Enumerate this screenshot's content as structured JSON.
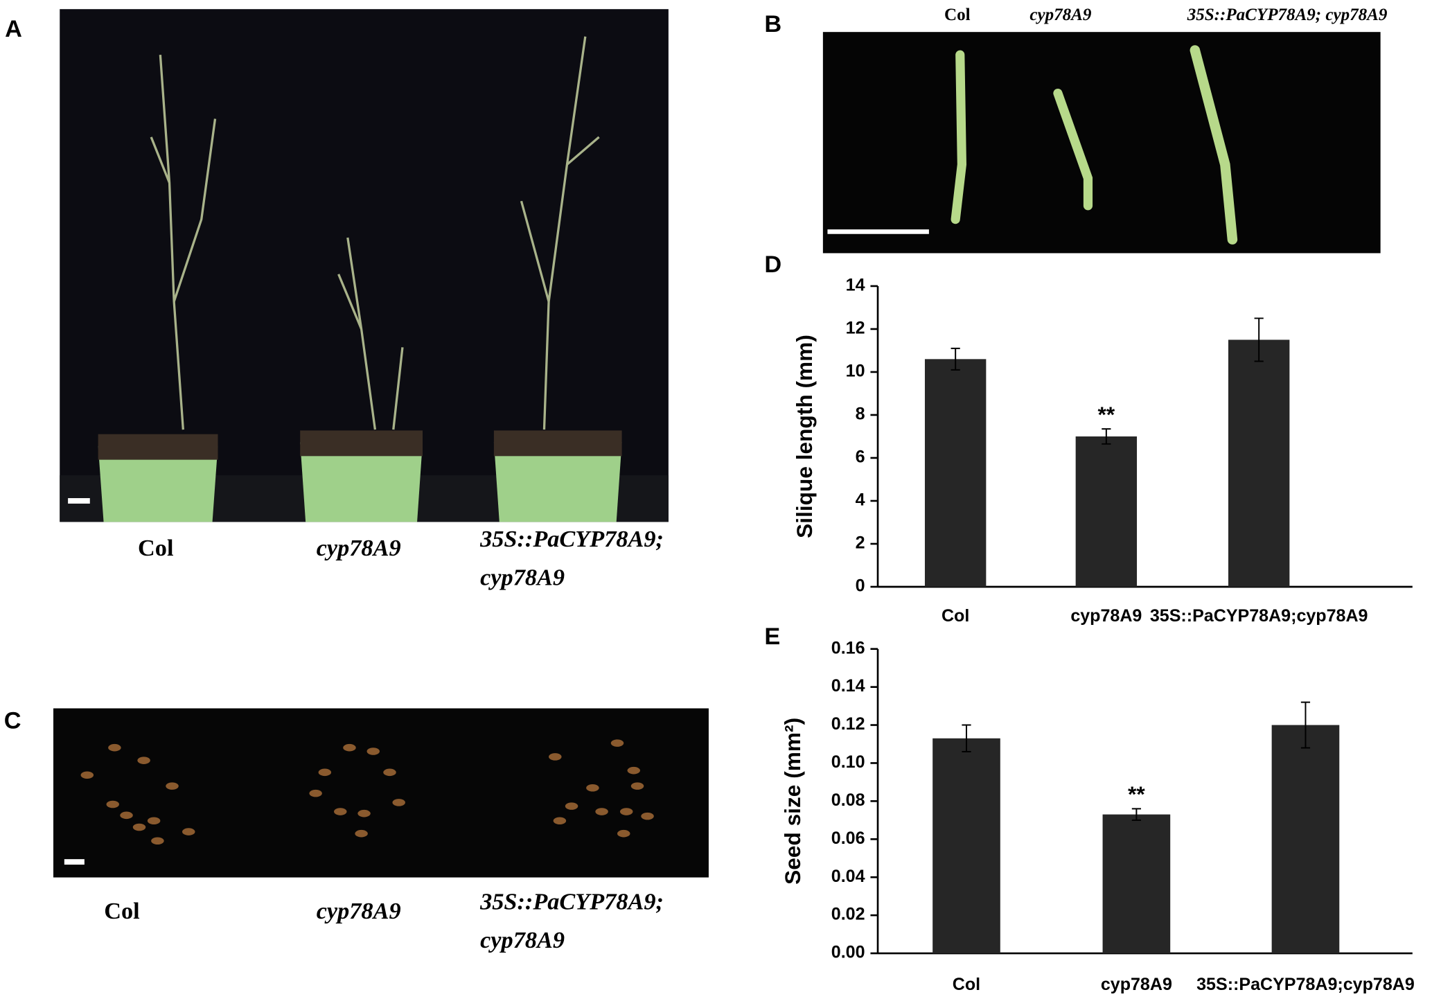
{
  "panels": {
    "A": {
      "label": "A",
      "captions": [
        "Col",
        "cyp78A9",
        "35S::PaCYP78A9;",
        "cyp78A9"
      ]
    },
    "B": {
      "label": "B",
      "captions": [
        "Col",
        "cyp78A9",
        "35S::PaCYP78A9; cyp78A9"
      ]
    },
    "C": {
      "label": "C",
      "captions": [
        "Col",
        "cyp78A9",
        "35S::PaCYP78A9;",
        "cyp78A9"
      ]
    }
  },
  "chart_data": [
    {
      "type": "bar",
      "panel": "D",
      "ylabel": "Silique length (mm)",
      "categories": [
        "Col",
        "cyp78A9",
        "35S::PaCYP78A9;cyp78A9"
      ],
      "values": [
        10.6,
        7.0,
        11.5
      ],
      "errors": [
        0.5,
        0.35,
        1.0
      ],
      "color": "#262626",
      "annotation": "**",
      "ylim": [
        0,
        14
      ],
      "yticks": [
        0,
        2,
        4,
        6,
        8,
        10,
        12,
        14
      ]
    },
    {
      "type": "bar",
      "panel": "E",
      "ylabel": "Seed size (mm²)",
      "categories": [
        "Col",
        "cyp78A9",
        "35S::PaCYP78A9;cyp78A9"
      ],
      "values": [
        0.113,
        0.073,
        0.12
      ],
      "errors": [
        0.007,
        0.003,
        0.012
      ],
      "color": "#262626",
      "annotation": "**",
      "ylim": [
        0,
        0.16
      ],
      "yticks": [
        {
          "value": 0,
          "label": "0.00"
        },
        {
          "value": 0.02,
          "label": "0.02"
        },
        {
          "value": 0.04,
          "label": "0.04"
        },
        {
          "value": 0.06,
          "label": "0.06"
        },
        {
          "value": 0.08,
          "label": "0.08"
        },
        {
          "value": 0.1,
          "label": "0.10"
        },
        {
          "value": 0.12,
          "label": "0.12"
        },
        {
          "value": 0.14,
          "label": "0.14"
        },
        {
          "value": 0.16,
          "label": "0.16"
        }
      ]
    }
  ]
}
